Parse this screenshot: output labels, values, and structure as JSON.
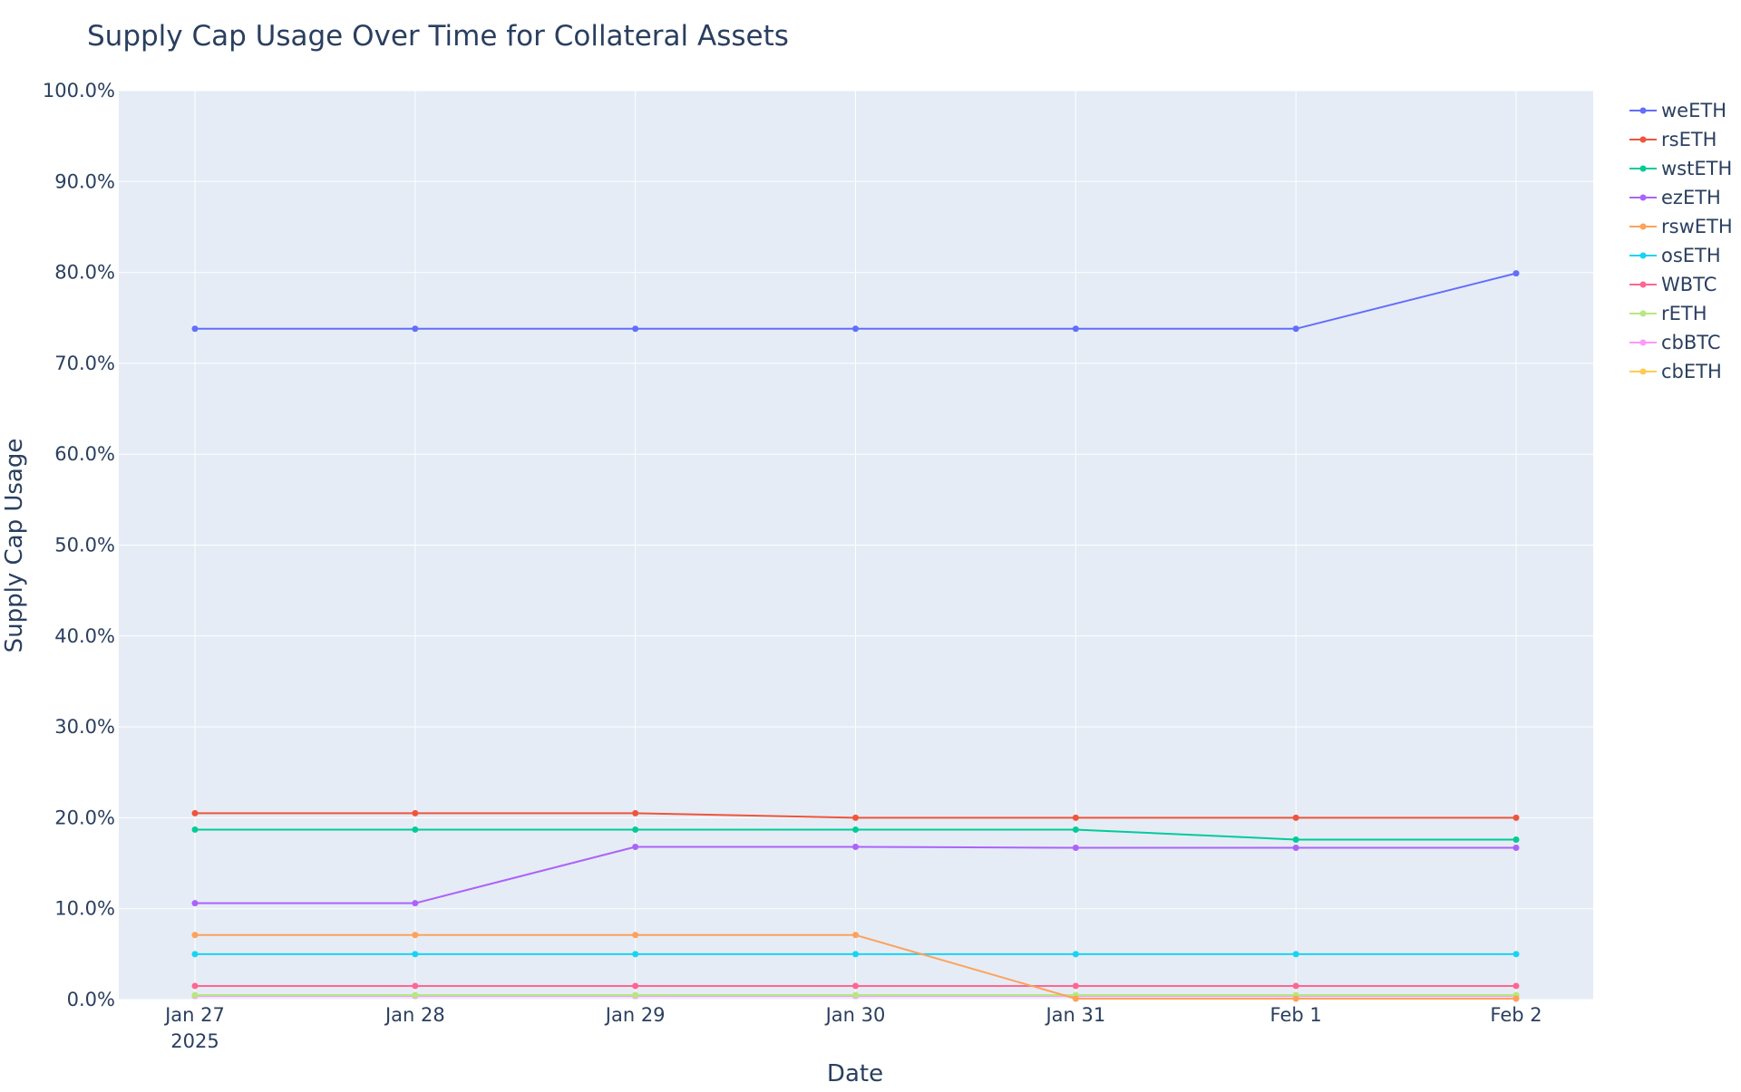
{
  "chart_data": {
    "type": "line",
    "title": "Supply Cap Usage Over Time for Collateral Assets",
    "xlabel": "Date",
    "ylabel": "Supply Cap Usage",
    "x": [
      "2025-01-27",
      "2025-01-28",
      "2025-01-29",
      "2025-01-30",
      "2025-01-31",
      "2025-02-01",
      "2025-02-02"
    ],
    "x_tick_labels": [
      "Jan 27",
      "Jan 28",
      "Jan 29",
      "Jan 30",
      "Jan 31",
      "Feb 1",
      "Feb 2"
    ],
    "x_tick_year": "2025",
    "ylim": [
      0,
      1
    ],
    "y_ticks": [
      0,
      0.1,
      0.2,
      0.3,
      0.4,
      0.5,
      0.6,
      0.7,
      0.8,
      0.9,
      1.0
    ],
    "y_tick_labels": [
      "0.0%",
      "10.0%",
      "20.0%",
      "30.0%",
      "40.0%",
      "50.0%",
      "60.0%",
      "70.0%",
      "80.0%",
      "90.0%",
      "100.0%"
    ],
    "grid": true,
    "legend_position": "right",
    "plot_background": "#e5ecf6",
    "series": [
      {
        "name": "weETH",
        "color": "#636efa",
        "values": [
          0.738,
          0.738,
          0.738,
          0.738,
          0.738,
          0.738,
          0.799
        ]
      },
      {
        "name": "rsETH",
        "color": "#ef553b",
        "values": [
          0.205,
          0.205,
          0.205,
          0.2,
          0.2,
          0.2,
          0.2
        ]
      },
      {
        "name": "wstETH",
        "color": "#00cc96",
        "values": [
          0.187,
          0.187,
          0.187,
          0.187,
          0.187,
          0.176,
          0.176
        ]
      },
      {
        "name": "ezETH",
        "color": "#ab63fa",
        "values": [
          0.106,
          0.106,
          0.168,
          0.168,
          0.167,
          0.167,
          0.167
        ]
      },
      {
        "name": "rswETH",
        "color": "#ffa15a",
        "values": [
          0.071,
          0.071,
          0.071,
          0.071,
          0.001,
          0.001,
          0.001
        ]
      },
      {
        "name": "osETH",
        "color": "#19d3f3",
        "values": [
          0.05,
          0.05,
          0.05,
          0.05,
          0.05,
          0.05,
          0.05
        ]
      },
      {
        "name": "WBTC",
        "color": "#ff6692",
        "values": [
          0.015,
          0.015,
          0.015,
          0.015,
          0.015,
          0.015,
          0.015
        ]
      },
      {
        "name": "rETH",
        "color": "#b6e880",
        "values": [
          0.005,
          0.005,
          0.005,
          0.005,
          0.005,
          0.005,
          0.005
        ]
      },
      {
        "name": "cbBTC",
        "color": "#ff97ff",
        "values": [
          0.004,
          0.004,
          0.004,
          0.004,
          0.004,
          0.004,
          0.004
        ]
      },
      {
        "name": "cbETH",
        "color": "#fecb52",
        "values": [
          0.004,
          0.004,
          0.004,
          0.004,
          0.004,
          0.004,
          0.004
        ]
      }
    ]
  }
}
